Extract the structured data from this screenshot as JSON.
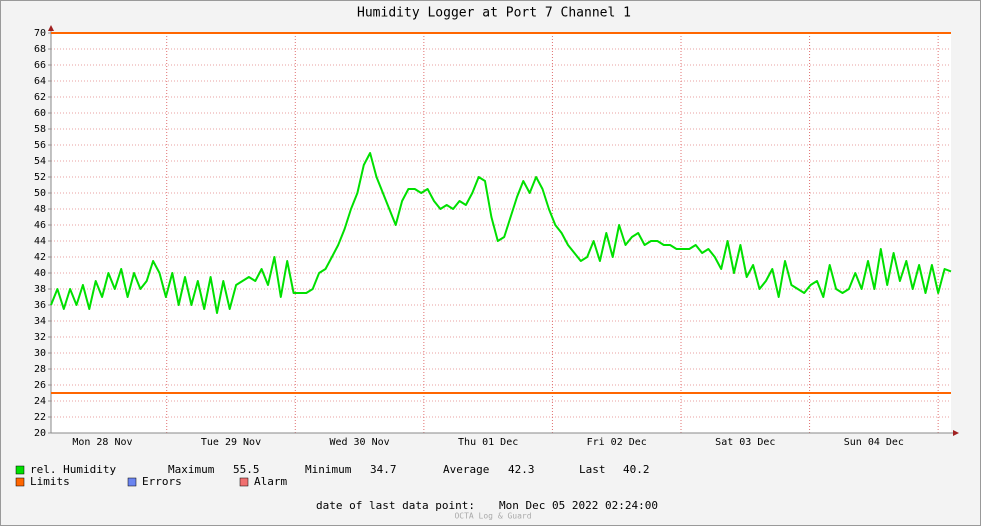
{
  "chart_data": {
    "type": "line",
    "title": "Humidity Logger at Port 7 Channel 1",
    "xlim": [
      0,
      7
    ],
    "xticks": [
      {
        "value": 0.4,
        "label": "Mon 28 Nov"
      },
      {
        "value": 1.4,
        "label": "Tue 29 Nov"
      },
      {
        "value": 2.4,
        "label": "Wed 30 Nov"
      },
      {
        "value": 3.4,
        "label": "Thu 01 Dec"
      },
      {
        "value": 4.4,
        "label": "Fri 02 Dec"
      },
      {
        "value": 5.4,
        "label": "Sat 03 Dec"
      },
      {
        "value": 6.4,
        "label": "Sun 04 Dec"
      }
    ],
    "ylim": [
      20,
      70
    ],
    "yticks": [
      20,
      22,
      24,
      26,
      28,
      30,
      32,
      34,
      36,
      38,
      40,
      42,
      44,
      46,
      48,
      50,
      52,
      54,
      56,
      58,
      60,
      62,
      64,
      66,
      68,
      70
    ],
    "grid": true,
    "series": [
      {
        "name": "rel. Humidity",
        "color": "#00e000",
        "values": [
          36,
          38,
          35.5,
          38,
          36,
          38.5,
          35.5,
          39,
          37,
          40,
          38,
          40.5,
          37,
          40,
          38,
          39,
          41.5,
          40,
          37,
          40,
          36,
          39.5,
          36,
          39,
          35.5,
          39.5,
          35,
          39,
          35.5,
          38.5,
          39,
          39.5,
          39,
          40.5,
          38.5,
          42,
          37,
          41.5,
          37.5,
          37.5,
          37.5,
          38,
          40,
          40.5,
          42,
          43.5,
          45.5,
          48,
          50,
          53.5,
          55,
          52,
          50,
          48,
          46,
          49,
          50.5,
          50.5,
          50,
          50.5,
          49,
          48,
          48.5,
          48,
          49,
          48.5,
          50,
          52,
          51.5,
          47,
          44,
          44.5,
          47,
          49.5,
          51.5,
          50,
          52,
          50.5,
          48,
          46,
          45,
          43.5,
          42.5,
          41.5,
          42,
          44,
          41.5,
          45,
          42,
          46,
          43.5,
          44.5,
          45,
          43.5,
          44,
          44,
          43.5,
          43.5,
          43,
          43,
          43,
          43.5,
          42.5,
          43,
          42,
          40.5,
          44,
          40,
          43.5,
          39.5,
          41,
          38,
          39,
          40.5,
          37,
          41.5,
          38.5,
          38,
          37.5,
          38.5,
          39,
          37,
          41,
          38,
          37.5,
          38,
          40,
          38,
          41.5,
          38,
          43,
          38.5,
          42.5,
          39,
          41.5,
          38,
          41,
          37.5,
          41,
          37.5,
          40.5,
          40.2
        ]
      }
    ],
    "limits": {
      "name": "Limits",
      "color": "#ff6600",
      "values": [
        70,
        25
      ]
    },
    "legend_extra": [
      {
        "name": "Errors",
        "color": "#6a84f0"
      },
      {
        "name": "Alarm",
        "color": "#f07070"
      }
    ],
    "stats": [
      {
        "label": "Maximum",
        "value": 55.5
      },
      {
        "label": "Minimum",
        "value": 34.7
      },
      {
        "label": "Average",
        "value": 42.3
      },
      {
        "label": "Last",
        "value": 40.2
      }
    ],
    "footer_label": "date of last data point:",
    "footer_value": "Mon Dec 05 2022 02:24:00",
    "watermark": "OCTA Log & Guard"
  }
}
